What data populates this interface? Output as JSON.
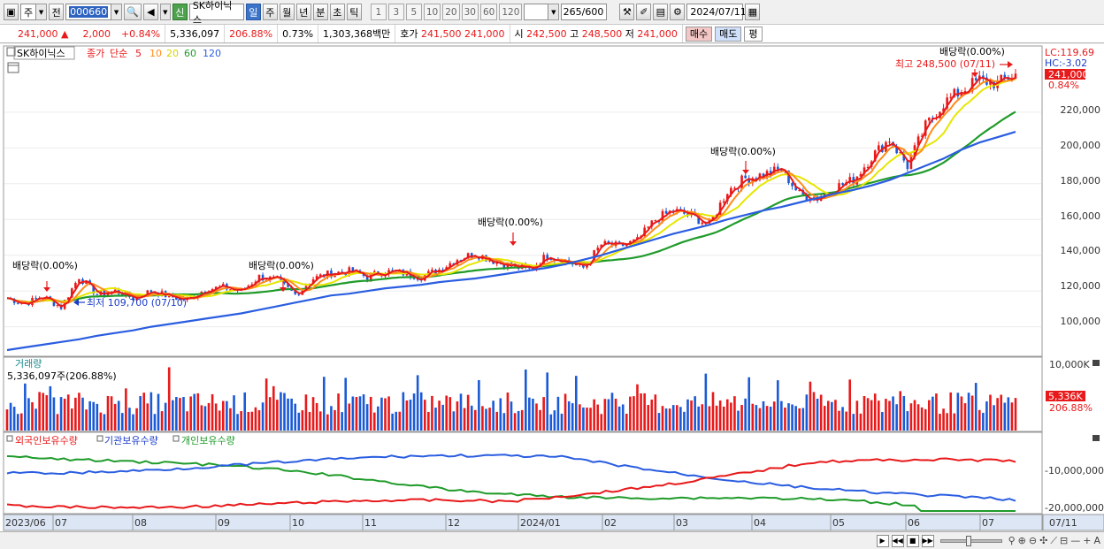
{
  "toolbar": {
    "market": "주",
    "scope": "전",
    "code": "000660",
    "stock_name": "SK하이닉스",
    "new_badge": "신",
    "periods": [
      "일",
      "주",
      "월",
      "년",
      "분",
      "초",
      "틱"
    ],
    "active_period": "일",
    "intervals": [
      "1",
      "3",
      "5",
      "10",
      "20",
      "30",
      "60",
      "120"
    ],
    "count": "265",
    "count_total": "/600",
    "date": "2024/07/11"
  },
  "quote": {
    "price": "241,000",
    "change_arrow": "▲",
    "change": "2,000",
    "change_pct": "+0.84%",
    "volume": "5,336,097",
    "volume_ratio": "206.88%",
    "turnover_pct": "0.73%",
    "amount": "1,303,368백만",
    "bid_label": "호가",
    "ask_price": "241,500",
    "bid_price": "241,000",
    "open_label": "시",
    "open": "242,500",
    "high_label": "고",
    "high": "248,500",
    "low_label": "저",
    "low": "241,000",
    "buy_button": "매수",
    "sell_button": "매도",
    "eval_button": "평"
  },
  "legend": {
    "stock": "SK하이닉스",
    "close": "종가",
    "ma_type": "단순",
    "ma_periods": [
      "5",
      "10",
      "20",
      "60",
      "120"
    ],
    "ma_colors": [
      "#e8191a",
      "#ff8c1a",
      "#e6e600",
      "#1f9b2a",
      "#2a5de0"
    ]
  },
  "right_labels": {
    "lc": "LC:119.69",
    "hc": "HC:-3.02",
    "last_price": "241,000",
    "last_pct": "0.84%",
    "vol_last": "5,336K",
    "vol_pct": "206.88%",
    "vol_top": "10,000K",
    "inv_tick": "-10,000,000",
    "inv_tick2": "-20,000,000"
  },
  "price_axis": [
    "220,000",
    "200,000",
    "180,000",
    "160,000",
    "140,000",
    "120,000",
    "100,000"
  ],
  "annotations": {
    "dividend": [
      "배당락(0.00%)",
      "배당락(0.00%)",
      "배당락(0.00%)",
      "배당락(0.00%)",
      "배당락(0.00%)"
    ],
    "high_note": "최고 248,500 (07/11)",
    "low_note": "최저 109,700 (07/10)"
  },
  "volume_panel": {
    "title": "거래량",
    "value": "5,336,097주(206.88%)"
  },
  "investor_panel": {
    "foreign": "외국인보유수량",
    "institution": "기관보유수량",
    "individual": "개인보유수량"
  },
  "x_axis": [
    "2023/06",
    "07",
    "08",
    "09",
    "10",
    "11",
    "12",
    "2024/01",
    "02",
    "03",
    "04",
    "05",
    "06",
    "07"
  ],
  "x_axis_right": "07/11",
  "chart_data": {
    "type": "line",
    "title": "",
    "y_range": [
      85000,
      255000
    ],
    "series": [
      {
        "name": "종가",
        "values": [
          116000,
          113000,
          117000,
          111000,
          128000,
          118000,
          120000,
          116000,
          120000,
          117000,
          115000,
          121000,
          122000,
          120000,
          128000,
          126000,
          118000,
          127000,
          130000,
          131000,
          128000,
          131000,
          130000,
          128000,
          132000,
          138000,
          141000,
          137000,
          134000,
          132000,
          140000,
          137000,
          133000,
          146000,
          145000,
          148000,
          160000,
          165000,
          162000,
          157000,
          176000,
          183000,
          185000,
          188000,
          174000,
          172000,
          178000,
          182000,
          195000,
          205000,
          190000,
          212000,
          225000,
          232000,
          238000,
          236000,
          241000
        ]
      },
      {
        "name": "120",
        "values": [
          87000,
          88500,
          90000,
          91500,
          93000,
          95000,
          96500,
          98000,
          100000,
          101500,
          103000,
          104500,
          106000,
          107500,
          109500,
          111500,
          113500,
          115500,
          117500,
          118500,
          120000,
          121500,
          122500,
          123500,
          125000,
          126000,
          127000,
          128500,
          130000,
          131500,
          133000,
          135000,
          137500,
          140000,
          143000,
          146000,
          149000,
          152000,
          154500,
          157000,
          160000,
          162500,
          165000,
          167000,
          169500,
          172000,
          174500,
          176500,
          179000,
          182000,
          186000,
          190000,
          194000,
          199000,
          203000,
          206000,
          209000
        ]
      }
    ]
  }
}
